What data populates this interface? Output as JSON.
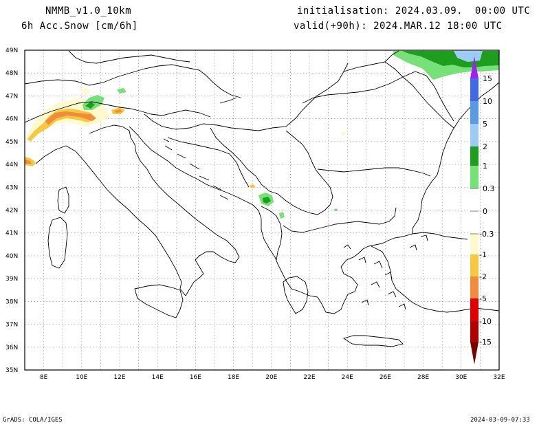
{
  "header": {
    "model": "NMMB_v1.0_10km",
    "field": "6h Acc.Snow [cm/6h]",
    "init": "initialisation: 2024.03.09.  00:00 UTC",
    "valid": "valid(+90h): 2024.MAR.12 18:00 UTC"
  },
  "footer": {
    "left": "GrADS: COLA/IGES",
    "right": "2024-03-09-07:33"
  },
  "axes": {
    "lat_labels": [
      "49N",
      "48N",
      "47N",
      "46N",
      "45N",
      "44N",
      "43N",
      "42N",
      "41N",
      "40N",
      "39N",
      "38N",
      "37N",
      "36N",
      "35N"
    ],
    "lon_labels": [
      "8E",
      "10E",
      "12E",
      "14E",
      "16E",
      "18E",
      "20E",
      "22E",
      "24E",
      "26E",
      "28E",
      "30E",
      "32E"
    ],
    "lat_range": [
      35,
      49
    ],
    "lon_range": [
      7,
      32
    ]
  },
  "colorbar": {
    "labels": [
      "15",
      "10",
      "5",
      "2",
      "1",
      "0.3",
      "0",
      "-0.3",
      "-1",
      "-2",
      "-5",
      "-10",
      "-15"
    ],
    "colors": {
      "purple": "#a020f0",
      "blue_dark": "#4169e1",
      "blue": "#5a9ae0",
      "blue_light": "#9ecbf4",
      "green_dark": "#1e9e1e",
      "green_light": "#78e078",
      "white": "#ffffff",
      "cream": "#fffacd",
      "yellow": "#f5c842",
      "orange": "#f08c3c",
      "red": "#e00000",
      "darkred": "#b00000",
      "maroon": "#7a0000"
    }
  }
}
